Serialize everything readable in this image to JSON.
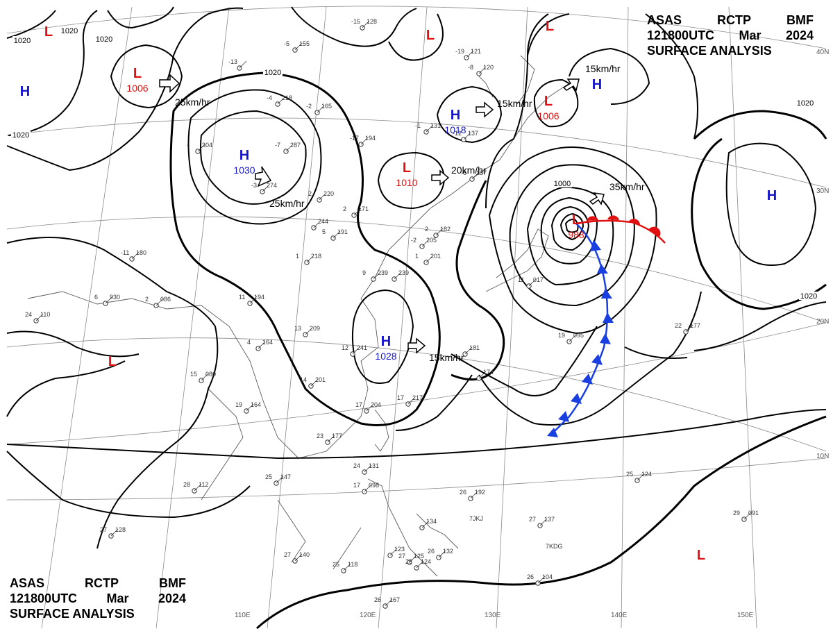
{
  "header": {
    "agency": "ASAS",
    "station": "RCTP",
    "unit": "BMF",
    "datetime": "121800UTC",
    "month": "Mar",
    "year": "2024",
    "subtitle": "SURFACE ANALYSIS"
  },
  "colors": {
    "high": "#1515cc",
    "low": "#dd1111",
    "isobar": "#000000",
    "grid": "#888888",
    "coast": "#555555",
    "cold_front": "#1a3fe0",
    "warm_front": "#e01010"
  },
  "lat_labels": [
    "40N",
    "30N",
    "20N",
    "10N"
  ],
  "lon_labels": [
    "110E",
    "120E",
    "130E",
    "140E",
    "150E"
  ],
  "isobar_labels": [
    "1020",
    "1020",
    "1020",
    "1020",
    "1020",
    "1000",
    "1020",
    "1020"
  ],
  "centers": [
    {
      "type": "L",
      "value": ""
    },
    {
      "type": "L",
      "value": "1006"
    },
    {
      "type": "H",
      "value": ""
    },
    {
      "type": "H",
      "value": "1030"
    },
    {
      "type": "L",
      "value": ""
    },
    {
      "type": "H",
      "value": "1018"
    },
    {
      "type": "L",
      "value": "1010"
    },
    {
      "type": "L",
      "value": ""
    },
    {
      "type": "L",
      "value": "1006"
    },
    {
      "type": "H",
      "value": ""
    },
    {
      "type": "L",
      "value": "988"
    },
    {
      "type": "H",
      "value": ""
    },
    {
      "type": "H",
      "value": "1028"
    },
    {
      "type": "L",
      "value": ""
    },
    {
      "type": "L",
      "value": ""
    }
  ],
  "motions": [
    {
      "label": "25km/hr"
    },
    {
      "label": "25km/hr"
    },
    {
      "label": "20km/hr"
    },
    {
      "label": "15km/hr"
    },
    {
      "label": "15km/hr"
    },
    {
      "label": "35km/hr"
    },
    {
      "label": "15km/hr"
    }
  ],
  "stations": [
    {
      "temp": "-15",
      "pres": "128"
    },
    {
      "temp": "-5",
      "pres": "155"
    },
    {
      "temp": "-4",
      "pres": "218"
    },
    {
      "temp": "-2",
      "pres": "165"
    },
    {
      "temp": "-13",
      "pres": ""
    },
    {
      "temp": "-",
      "pres": "304"
    },
    {
      "temp": "-7",
      "pres": "287"
    },
    {
      "temp": "-17",
      "pres": "194"
    },
    {
      "temp": "-3",
      "pres": "274"
    },
    {
      "temp": "2",
      "pres": "220"
    },
    {
      "temp": "2",
      "pres": "171"
    },
    {
      "temp": "",
      "pres": "244"
    },
    {
      "temp": "5",
      "pres": "191"
    },
    {
      "temp": "1",
      "pres": "218"
    },
    {
      "temp": "-11",
      "pres": "180"
    },
    {
      "temp": "6",
      "pres": "930"
    },
    {
      "temp": "24",
      "pres": "110"
    },
    {
      "temp": "2",
      "pres": "086"
    },
    {
      "temp": "11",
      "pres": "194"
    },
    {
      "temp": "13",
      "pres": "209"
    },
    {
      "temp": "4",
      "pres": "164"
    },
    {
      "temp": "15",
      "pres": "080"
    },
    {
      "temp": "14",
      "pres": "201"
    },
    {
      "temp": "19",
      "pres": "164"
    },
    {
      "temp": "12",
      "pres": "241"
    },
    {
      "temp": "",
      "pres": "239"
    },
    {
      "temp": "17",
      "pres": "204"
    },
    {
      "temp": "17",
      "pres": "217"
    },
    {
      "temp": "",
      "pres": "181"
    },
    {
      "temp": "",
      "pres": "174"
    },
    {
      "temp": "23",
      "pres": "177"
    },
    {
      "temp": "25",
      "pres": "147"
    },
    {
      "temp": "28",
      "pres": "112"
    },
    {
      "temp": "24",
      "pres": "131"
    },
    {
      "temp": "17",
      "pres": "098"
    },
    {
      "temp": "26",
      "pres": "192"
    },
    {
      "temp": "27",
      "pres": "137"
    },
    {
      "temp": "27",
      "pres": "140"
    },
    {
      "temp": "25",
      "pres": "118"
    },
    {
      "temp": "26",
      "pres": "167"
    },
    {
      "temp": "26",
      "pres": "104"
    },
    {
      "temp": "25",
      "pres": "124"
    },
    {
      "temp": "29",
      "pres": "091"
    },
    {
      "temp": "22",
      "pres": "177"
    },
    {
      "temp": "19",
      "pres": "095"
    },
    {
      "temp": "11",
      "pres": "017"
    },
    {
      "temp": "-6",
      "pres": "137"
    },
    {
      "temp": "-19",
      "pres": "121"
    },
    {
      "temp": "-1",
      "pres": "131"
    },
    {
      "temp": "-12",
      "pres": "137"
    },
    {
      "temp": "-8",
      "pres": "120"
    },
    {
      "temp": "2",
      "pres": "182"
    },
    {
      "temp": "-2",
      "pres": "205"
    },
    {
      "temp": "1",
      "pres": "201"
    },
    {
      "temp": "9",
      "pres": "239"
    },
    {
      "temp": "",
      "pres": "123"
    },
    {
      "temp": "27",
      "pres": "125"
    },
    {
      "temp": "26",
      "pres": "132"
    },
    {
      "temp": "26",
      "pres": "124"
    },
    {
      "temp": "",
      "pres": "134"
    },
    {
      "temp": "27",
      "pres": "128"
    }
  ],
  "station_ids": [
    "7JKJ",
    "7KDG"
  ]
}
